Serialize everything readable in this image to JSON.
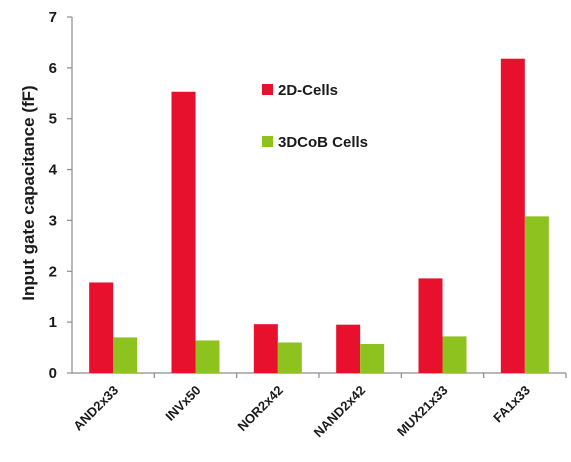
{
  "chart_data": {
    "type": "bar",
    "categories": [
      "AND2x33",
      "INVx50",
      "NOR2x42",
      "NAND2x42",
      "MUX21x33",
      "FA1x33"
    ],
    "series": [
      {
        "name": "2D-Cells",
        "color": "#e8112d",
        "values": [
          1.78,
          5.53,
          0.96,
          0.95,
          1.86,
          6.18
        ]
      },
      {
        "name": "3DCoB Cells",
        "color": "#8dc21f",
        "values": [
          0.7,
          0.64,
          0.6,
          0.57,
          0.72,
          3.08
        ]
      }
    ],
    "title": "",
    "xlabel": "",
    "ylabel": "Input gate capacitance (fF)",
    "ylim": [
      0,
      7
    ],
    "yticks": [
      "0",
      "1",
      "2",
      "3",
      "4",
      "5",
      "6",
      "7"
    ],
    "grid": false,
    "legend_placement": "top-center"
  }
}
